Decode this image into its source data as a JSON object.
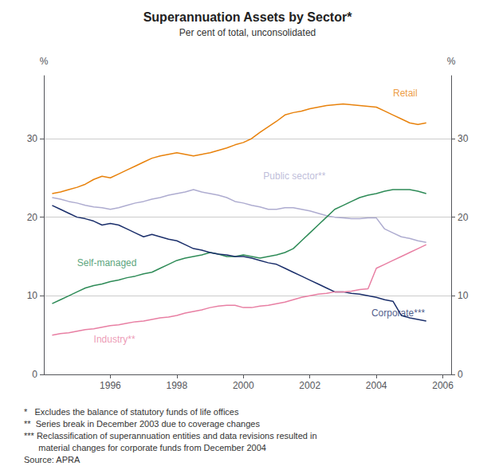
{
  "chart_data": {
    "type": "line",
    "title": "Superannuation Assets by Sector*",
    "subtitle": "Per cent of total, unconsolidated",
    "ylabel": "%",
    "y2label": "%",
    "xlim": [
      1994.0,
      2006.25
    ],
    "xticks": [
      1996,
      1998,
      2000,
      2002,
      2004,
      2006
    ],
    "ylim": [
      0,
      38
    ],
    "yticks": [
      0,
      10,
      20,
      30
    ],
    "y2lim": [
      0,
      38
    ],
    "y2ticks": [
      0,
      10,
      20,
      30
    ],
    "grid": true,
    "x": [
      1994.25,
      1994.5,
      1994.75,
      1995.0,
      1995.25,
      1995.5,
      1995.75,
      1996.0,
      1996.25,
      1996.5,
      1996.75,
      1997.0,
      1997.25,
      1997.5,
      1997.75,
      1998.0,
      1998.25,
      1998.5,
      1998.75,
      1999.0,
      1999.25,
      1999.5,
      1999.75,
      2000.0,
      2000.25,
      2000.5,
      2000.75,
      2001.0,
      2001.25,
      2001.5,
      2001.75,
      2002.0,
      2002.25,
      2002.5,
      2002.75,
      2003.0,
      2003.25,
      2003.5,
      2003.75,
      2004.0,
      2004.25,
      2004.5,
      2004.75,
      2005.0,
      2005.25,
      2005.5
    ],
    "series": [
      {
        "name": "Retail",
        "color": "#E8820C",
        "values": [
          23.0,
          23.2,
          23.5,
          23.8,
          24.2,
          24.8,
          25.2,
          25.0,
          25.5,
          26.0,
          26.5,
          27.0,
          27.5,
          27.8,
          28.0,
          28.2,
          28.0,
          27.8,
          28.0,
          28.2,
          28.5,
          28.8,
          29.2,
          29.5,
          30.0,
          30.8,
          31.5,
          32.2,
          33.0,
          33.3,
          33.5,
          33.8,
          34.0,
          34.2,
          34.3,
          34.4,
          34.3,
          34.2,
          34.1,
          34.0,
          33.5,
          33.0,
          32.5,
          32.0,
          31.8,
          32.0
        ]
      },
      {
        "name": "Public sector**",
        "color": "#AEACD0",
        "values": [
          22.5,
          22.3,
          22.0,
          21.8,
          21.5,
          21.3,
          21.2,
          21.0,
          21.2,
          21.5,
          21.8,
          22.0,
          22.3,
          22.5,
          22.8,
          23.0,
          23.2,
          23.5,
          23.2,
          23.0,
          22.8,
          22.5,
          22.0,
          21.8,
          21.5,
          21.3,
          21.0,
          21.0,
          21.2,
          21.2,
          21.0,
          20.8,
          20.5,
          20.2,
          20.0,
          19.9,
          19.8,
          19.8,
          19.9,
          19.9,
          18.5,
          18.0,
          17.5,
          17.3,
          17.0,
          16.8
        ]
      },
      {
        "name": "Self-managed",
        "color": "#2E8B57",
        "values": [
          9.0,
          9.5,
          10.0,
          10.5,
          11.0,
          11.3,
          11.5,
          11.8,
          12.0,
          12.3,
          12.5,
          12.8,
          13.0,
          13.5,
          14.0,
          14.5,
          14.8,
          15.0,
          15.2,
          15.5,
          15.3,
          15.0,
          15.0,
          15.2,
          15.0,
          14.8,
          15.0,
          15.2,
          15.5,
          16.0,
          17.0,
          18.0,
          19.0,
          20.0,
          21.0,
          21.5,
          22.0,
          22.5,
          22.8,
          23.0,
          23.3,
          23.5,
          23.5,
          23.5,
          23.3,
          23.0
        ]
      },
      {
        "name": "Corporate***",
        "color": "#1B2F6B",
        "values": [
          21.5,
          21.0,
          20.5,
          20.0,
          19.8,
          19.5,
          19.0,
          19.2,
          19.0,
          18.5,
          18.0,
          17.5,
          17.8,
          17.5,
          17.2,
          17.0,
          16.5,
          16.0,
          15.8,
          15.5,
          15.3,
          15.2,
          15.0,
          15.0,
          14.8,
          14.5,
          14.2,
          14.0,
          13.5,
          13.0,
          12.5,
          12.0,
          11.5,
          11.0,
          10.5,
          10.5,
          10.3,
          10.2,
          10.0,
          9.8,
          9.5,
          9.3,
          7.5,
          7.2,
          7.0,
          6.8
        ]
      },
      {
        "name": "Industry**",
        "color": "#E87FA3",
        "values": [
          5.0,
          5.2,
          5.3,
          5.5,
          5.7,
          5.8,
          6.0,
          6.2,
          6.3,
          6.5,
          6.7,
          6.8,
          7.0,
          7.2,
          7.3,
          7.5,
          7.8,
          8.0,
          8.2,
          8.5,
          8.7,
          8.8,
          8.8,
          8.5,
          8.5,
          8.7,
          8.8,
          9.0,
          9.2,
          9.5,
          9.8,
          10.0,
          10.2,
          10.3,
          10.5,
          10.5,
          10.6,
          10.8,
          10.9,
          13.5,
          14.0,
          14.5,
          15.0,
          15.5,
          16.0,
          16.5
        ]
      }
    ],
    "annotations": [
      {
        "text": "Retail",
        "x": 2004.5,
        "y": 35.8,
        "color": "#E8820C"
      },
      {
        "text": "Public sector**",
        "x": 2000.6,
        "y": 25.2,
        "color": "#AEACD0"
      },
      {
        "text": "Self-managed",
        "x": 1995.0,
        "y": 14.2,
        "color": "#2E8B57"
      },
      {
        "text": "Corporate***",
        "x": 2003.85,
        "y": 7.8,
        "color": "#1B2F6B"
      },
      {
        "text": "Industry**",
        "x": 1995.5,
        "y": 4.5,
        "color": "#E87FA3"
      }
    ],
    "footnotes": [
      "*   Excludes the balance of statutory funds of life offices",
      "**  Series break in December 2003 due to coverage changes",
      "*** Reclassification of superannuation entities and data revisions resulted in",
      "      material changes for corporate funds from December 2004",
      "Source: APRA"
    ]
  }
}
